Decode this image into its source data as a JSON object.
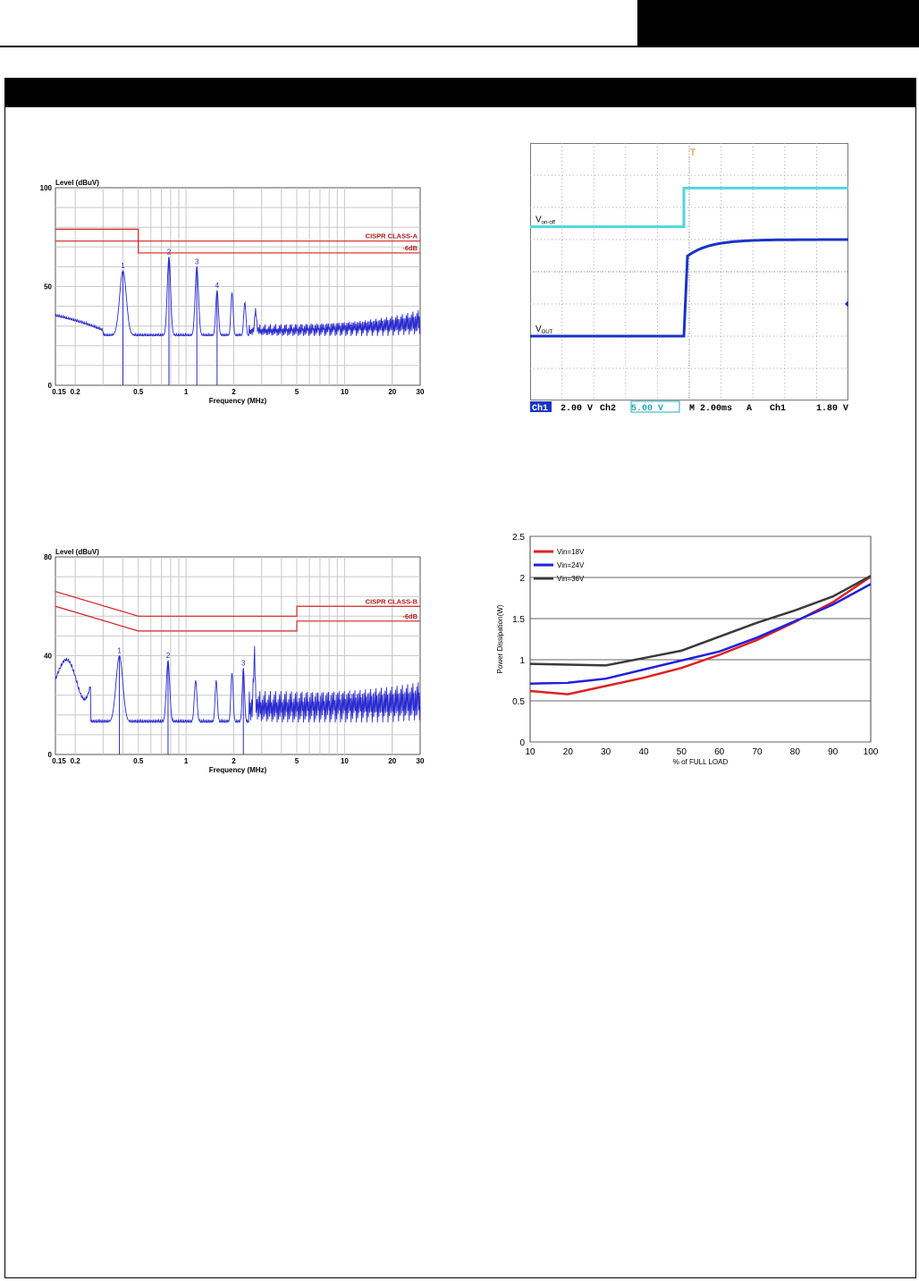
{
  "page": {
    "colors": {
      "band": "#000000",
      "limit": "#d42020",
      "trace": "#2a2ad0",
      "grid": "#c8c8c8"
    }
  },
  "chart_data": [
    {
      "type": "line",
      "title": "",
      "ylabel": "Level (dBuV)",
      "xlabel": "Frequency (MHz)",
      "xscale": "log",
      "xlim": [
        0.15,
        30
      ],
      "ylim": [
        0,
        100
      ],
      "xticks": [
        "0.15",
        "0.2",
        "0.5",
        "1",
        "2",
        "5",
        "10",
        "20",
        "30"
      ],
      "xtick_values": [
        0.15,
        0.2,
        0.5,
        1,
        2,
        5,
        10,
        20,
        30
      ],
      "yticks": [
        0,
        50,
        100
      ],
      "limit_lines": [
        {
          "name": "CISPR CLASS-A",
          "x": [
            0.15,
            0.5,
            0.5,
            30
          ],
          "y": [
            79,
            79,
            73,
            73
          ]
        },
        {
          "name": "-6dB",
          "x": [
            0.15,
            0.5,
            0.5,
            30
          ],
          "y": [
            73,
            73,
            67,
            67
          ]
        }
      ],
      "markers": [
        {
          "label": "1",
          "x": 0.4,
          "y": 58
        },
        {
          "label": "2",
          "x": 0.78,
          "y": 65
        },
        {
          "label": "3",
          "x": 1.17,
          "y": 60
        },
        {
          "label": "4",
          "x": 1.57,
          "y": 48
        }
      ]
    },
    {
      "type": "line",
      "title": "",
      "channels": [
        {
          "name": "Von-off",
          "sub": "on-off",
          "main": "V",
          "color": "#4fd6e2",
          "y_before": 5.4,
          "y_after": 6.6
        },
        {
          "name": "VOUT",
          "sub": "OUT",
          "main": "V",
          "color": "#1a34c8",
          "y_before": 2.0,
          "y_after": 5.0
        }
      ],
      "status_bar": [
        "Ch1",
        "2.00 V",
        "Ch2",
        "5.00 V",
        "M 2.00ms",
        "A",
        "Ch1",
        "1.80 V"
      ]
    },
    {
      "type": "line",
      "title": "",
      "ylabel": "Level (dBuV)",
      "xlabel": "Frequency (MHz)",
      "xscale": "log",
      "xlim": [
        0.15,
        30
      ],
      "ylim": [
        0,
        80
      ],
      "xticks": [
        "0.15",
        "0.2",
        "0.5",
        "1",
        "2",
        "5",
        "10",
        "20",
        "30"
      ],
      "xtick_values": [
        0.15,
        0.2,
        0.5,
        1,
        2,
        5,
        10,
        20,
        30
      ],
      "yticks": [
        0,
        40,
        80
      ],
      "limit_lines": [
        {
          "name": "CISPR CLASS-B",
          "x": [
            0.15,
            0.5,
            5,
            5,
            30
          ],
          "y": [
            66,
            56,
            56,
            60,
            60
          ]
        },
        {
          "name": "-6dB",
          "x": [
            0.15,
            0.5,
            5,
            5,
            30
          ],
          "y": [
            60,
            50,
            50,
            54,
            54
          ]
        }
      ],
      "markers": [
        {
          "label": "1",
          "x": 0.38,
          "y": 40
        },
        {
          "label": "2",
          "x": 0.77,
          "y": 38
        },
        {
          "label": "3",
          "x": 2.3,
          "y": 35
        }
      ]
    },
    {
      "type": "line",
      "title": "",
      "ylabel": "Power Dissipation(W)",
      "xlabel": "% of FULL LOAD",
      "xlim": [
        10,
        100
      ],
      "ylim": [
        0,
        2.5
      ],
      "xticks": [
        10,
        20,
        30,
        40,
        50,
        60,
        70,
        80,
        90,
        100
      ],
      "yticks": [
        0,
        0.5,
        1,
        1.5,
        2,
        2.5
      ],
      "categories": [
        10,
        20,
        30,
        40,
        50,
        60,
        70,
        80,
        90,
        100
      ],
      "series": [
        {
          "name": "Vin=18V",
          "color": "#e02020",
          "values": [
            0.62,
            0.58,
            0.68,
            0.78,
            0.9,
            1.06,
            1.24,
            1.46,
            1.7,
            2.01
          ]
        },
        {
          "name": "Vin=24V",
          "color": "#2020e0",
          "values": [
            0.71,
            0.72,
            0.77,
            0.88,
            0.99,
            1.1,
            1.27,
            1.47,
            1.67,
            1.92
          ]
        },
        {
          "name": "Vin=36V",
          "color": "#3a3a3a",
          "values": [
            0.95,
            0.94,
            0.93,
            1.02,
            1.11,
            1.28,
            1.45,
            1.6,
            1.77,
            2.02
          ]
        }
      ]
    }
  ]
}
